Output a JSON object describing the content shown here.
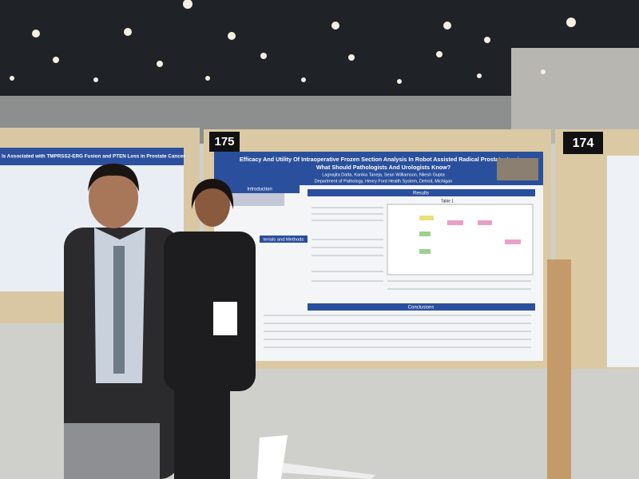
{
  "board_numbers": [
    "175",
    "174"
  ],
  "left_poster": {
    "title": "Is Associated with TMPRSS2-ERG Fusion and PTEN Loss in Prostate Cancer"
  },
  "poster": {
    "title_line1": "Efficacy And Utility Of Intraoperative Frozen Section Analysis In Robot Assisted Radical Prostatectomies:",
    "title_line2": "What Should Pathologists And Urologists Know?",
    "authors": "Lagnajita Datta, Kanika Taneja, Sean Williamson, Nilesh Gupta",
    "affiliation": "Department of Pathology, Henry Ford Health System, Detroit, Michigan",
    "sections": {
      "introduction": "Introduction",
      "methods": "terials and Methods",
      "results": "Results",
      "conclusions": "Conclusions"
    },
    "table_title": "Table 1"
  }
}
